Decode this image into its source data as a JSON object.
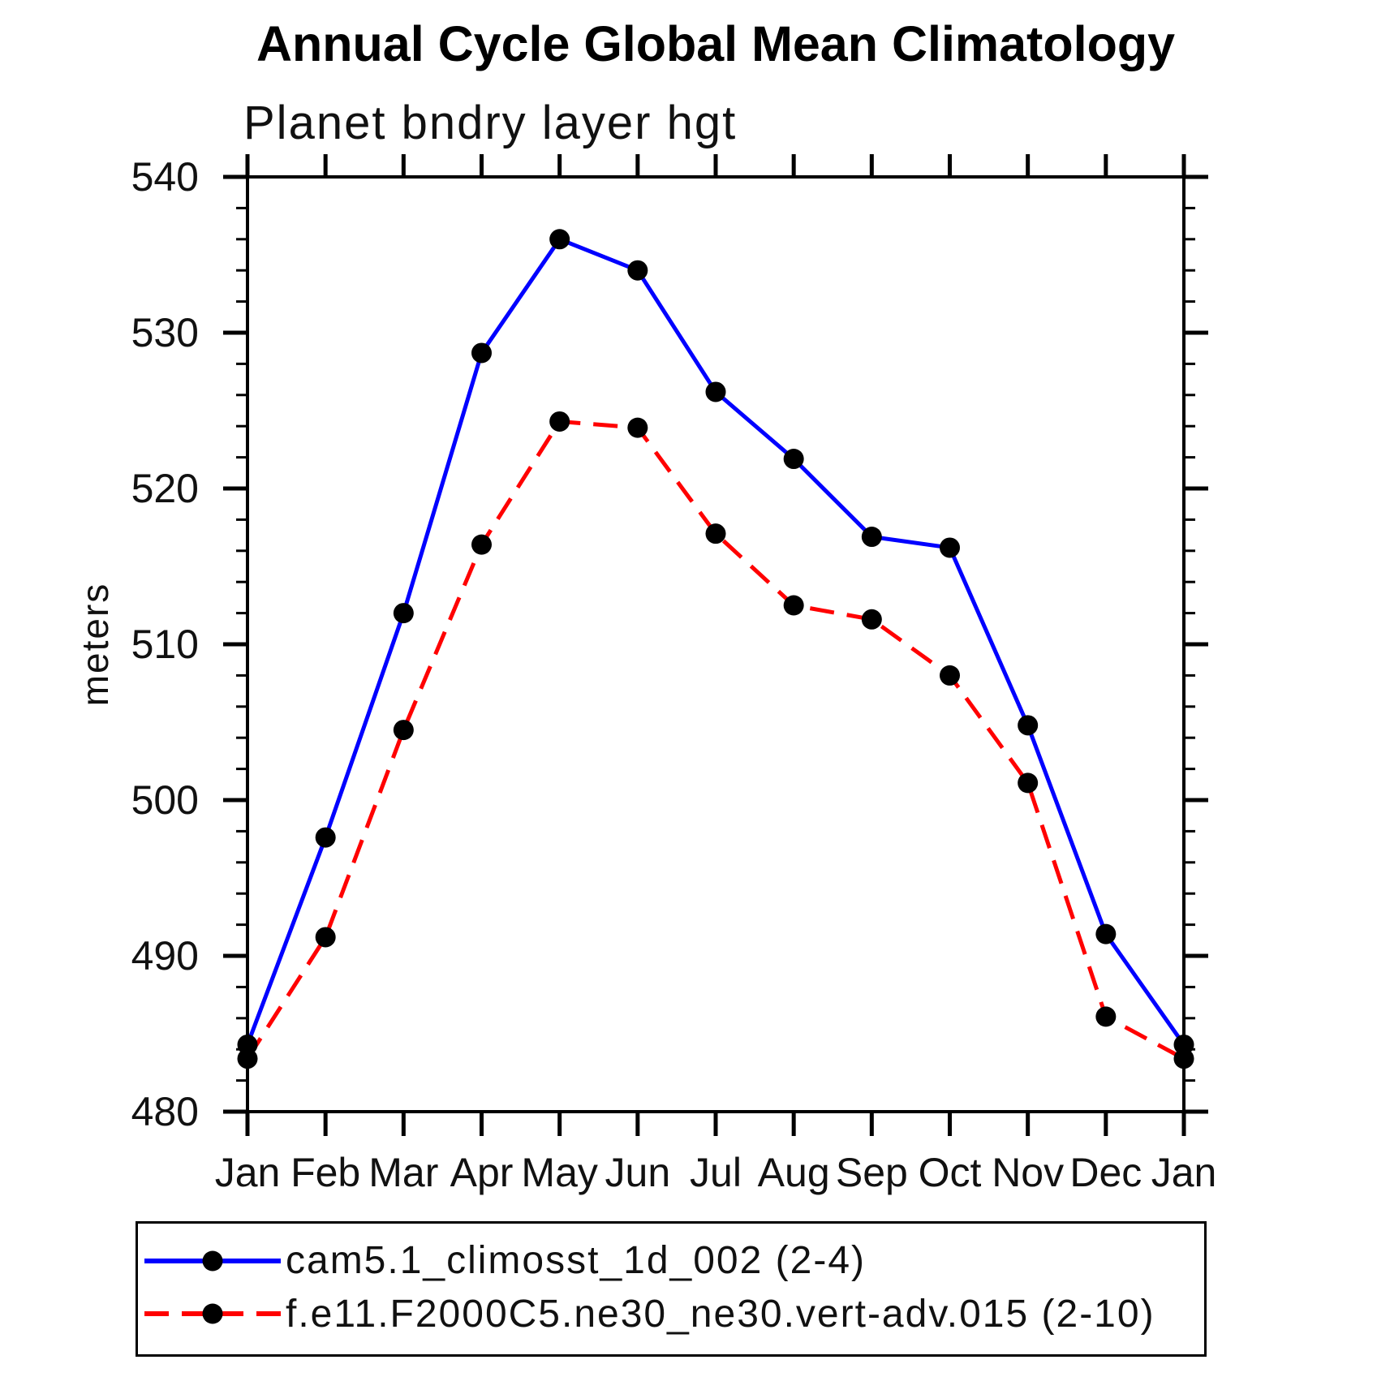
{
  "chart_data": {
    "type": "line",
    "title": "Annual Cycle Global Mean Climatology",
    "subtitle": "Planet bndry layer hgt",
    "ylabel": "meters",
    "categories": [
      "Jan",
      "Feb",
      "Mar",
      "Apr",
      "May",
      "Jun",
      "Jul",
      "Aug",
      "Sep",
      "Oct",
      "Nov",
      "Dec",
      "Jan"
    ],
    "ylim": [
      480,
      540
    ],
    "y_major_step": 10,
    "y_minor_step": 2,
    "grid": false,
    "legend_position": "bottom",
    "frame_color": "#000000",
    "marker_color": "#000000",
    "series": [
      {
        "name": "cam5.1_climosst_1d_002 (2-4)",
        "color": "#0000ff",
        "style": "solid",
        "marker": "black-circle",
        "values": [
          484.3,
          497.6,
          512.0,
          528.7,
          536.0,
          534.0,
          526.2,
          521.9,
          516.9,
          516.2,
          504.8,
          491.4,
          484.3
        ]
      },
      {
        "name": "f.e11.F2000C5.ne30_ne30.vert-adv.015 (2-10)",
        "color": "#ff0000",
        "style": "dashed",
        "marker": "black-circle",
        "values": [
          483.4,
          491.2,
          504.5,
          516.4,
          524.3,
          523.9,
          517.1,
          512.5,
          511.6,
          508.0,
          501.1,
          486.1,
          483.4
        ]
      }
    ]
  }
}
